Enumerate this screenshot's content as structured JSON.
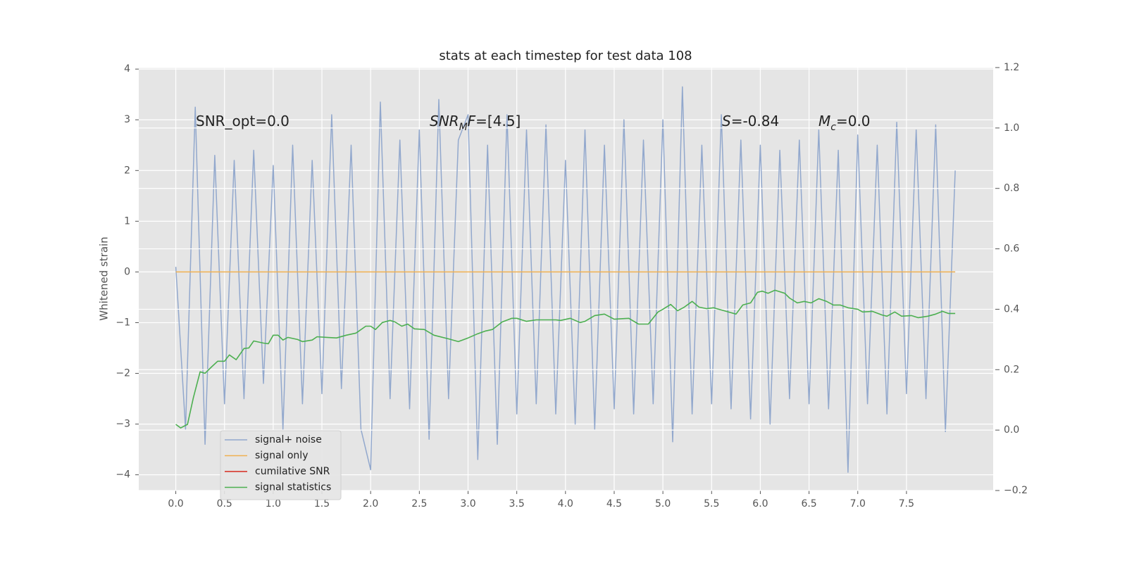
{
  "chart_data": {
    "type": "line",
    "title": "stats at each timestep for test data 108",
    "ylabel": "Whitened strain",
    "annotations": [
      [
        {
          "text": "SNR_opt=0.0",
          "style": "normal"
        }
      ],
      [
        {
          "text": "SNR",
          "style": "italic"
        },
        {
          "text": "M",
          "style": "sub"
        },
        {
          "text": "F",
          "style": "italic"
        },
        {
          "text": "=[4.5]",
          "style": "normal"
        }
      ],
      [
        {
          "text": "S",
          "style": "italic"
        },
        {
          "text": "=-0.84",
          "style": "normal"
        }
      ],
      [
        {
          "text": "M",
          "style": "italic"
        },
        {
          "text": "c",
          "style": "sub"
        },
        {
          "text": "=0.0",
          "style": "normal"
        }
      ]
    ],
    "series": [
      {
        "name": "signal+ noise",
        "color": "#92a8cd",
        "axis": "y",
        "x": [
          0,
          0.1,
          0.2,
          0.3,
          0.4,
          0.5,
          0.6,
          0.7,
          0.8,
          0.9,
          1.0,
          1.1,
          1.2,
          1.3,
          1.4,
          1.5,
          1.6,
          1.7,
          1.8,
          1.9,
          2.0,
          2.1,
          2.2,
          2.3,
          2.4,
          2.5,
          2.6,
          2.7,
          2.8,
          2.9,
          3.0,
          3.1,
          3.2,
          3.3,
          3.4,
          3.5,
          3.6,
          3.7,
          3.8,
          3.9,
          4.0,
          4.1,
          4.2,
          4.3,
          4.4,
          4.5,
          4.6,
          4.7,
          4.8,
          4.9,
          5.0,
          5.1,
          5.2,
          5.3,
          5.4,
          5.5,
          5.6,
          5.7,
          5.8,
          5.9,
          6.0,
          6.1,
          6.2,
          6.3,
          6.4,
          6.5,
          6.6,
          6.7,
          6.8,
          6.9,
          7.0,
          7.1,
          7.2,
          7.3,
          7.4,
          7.5,
          7.6,
          7.7,
          7.8,
          7.9,
          8.0
        ],
        "values": [
          0.1,
          -3.1,
          3.25,
          -3.4,
          2.3,
          -2.6,
          2.2,
          -2.5,
          2.4,
          -2.2,
          2.1,
          -3.1,
          2.5,
          -2.6,
          2.2,
          -2.4,
          3.1,
          -2.3,
          2.5,
          -3.1,
          -3.9,
          3.35,
          -2.5,
          2.6,
          -2.7,
          2.8,
          -3.3,
          3.4,
          -2.5,
          2.6,
          3.1,
          -3.7,
          2.5,
          -3.4,
          3.1,
          -2.8,
          2.8,
          -2.6,
          2.9,
          -2.8,
          2.2,
          -3.0,
          2.8,
          -3.1,
          2.5,
          -2.7,
          3.0,
          -2.8,
          2.6,
          -2.6,
          3.0,
          -3.35,
          3.65,
          -2.8,
          2.5,
          -2.6,
          3.1,
          -2.7,
          2.6,
          -2.9,
          2.5,
          -3.0,
          2.4,
          -2.5,
          2.6,
          -2.6,
          2.8,
          -2.7,
          2.4,
          -3.95,
          2.7,
          -2.6,
          2.5,
          -2.8,
          2.95,
          -2.4,
          2.8,
          -2.5,
          2.9,
          -3.15,
          2.0
        ]
      },
      {
        "name": "signal only",
        "color": "#f0b050",
        "axis": "y",
        "x": [
          0,
          8.0
        ],
        "values": [
          0,
          0
        ]
      },
      {
        "name": "cumilative SNR",
        "color": "#d62a1e",
        "axis": "y",
        "x": [],
        "values": []
      },
      {
        "name": "signal statistics",
        "color": "#4caf50",
        "axis": "y2",
        "x": [
          0,
          0.05,
          0.12,
          0.18,
          0.25,
          0.3,
          0.37,
          0.43,
          0.5,
          0.55,
          0.62,
          0.7,
          0.75,
          0.8,
          0.9,
          0.95,
          1.0,
          1.05,
          1.1,
          1.15,
          1.25,
          1.3,
          1.4,
          1.45,
          1.55,
          1.65,
          1.75,
          1.85,
          1.95,
          2.0,
          2.05,
          2.12,
          2.2,
          2.25,
          2.32,
          2.38,
          2.45,
          2.55,
          2.65,
          2.8,
          2.9,
          3.0,
          3.1,
          3.18,
          3.25,
          3.35,
          3.45,
          3.5,
          3.6,
          3.7,
          3.9,
          3.95,
          4.05,
          4.15,
          4.2,
          4.3,
          4.4,
          4.5,
          4.65,
          4.75,
          4.85,
          4.95,
          5.0,
          5.08,
          5.15,
          5.22,
          5.3,
          5.37,
          5.45,
          5.52,
          5.65,
          5.75,
          5.82,
          5.9,
          5.97,
          6.02,
          6.08,
          6.15,
          6.25,
          6.3,
          6.38,
          6.45,
          6.52,
          6.6,
          6.68,
          6.75,
          6.82,
          6.9,
          7.0,
          7.05,
          7.15,
          7.25,
          7.3,
          7.38,
          7.45,
          7.55,
          7.62,
          7.72,
          7.8,
          7.87,
          7.93,
          8.0
        ],
        "values": [
          0.019,
          0.007,
          0.019,
          0.107,
          0.193,
          0.188,
          0.21,
          0.228,
          0.228,
          0.249,
          0.233,
          0.27,
          0.272,
          0.295,
          0.288,
          0.286,
          0.314,
          0.314,
          0.298,
          0.307,
          0.3,
          0.293,
          0.298,
          0.309,
          0.307,
          0.305,
          0.314,
          0.321,
          0.344,
          0.344,
          0.333,
          0.356,
          0.363,
          0.358,
          0.344,
          0.351,
          0.335,
          0.333,
          0.314,
          0.302,
          0.293,
          0.305,
          0.319,
          0.328,
          0.333,
          0.358,
          0.37,
          0.37,
          0.36,
          0.365,
          0.365,
          0.363,
          0.37,
          0.356,
          0.36,
          0.379,
          0.384,
          0.367,
          0.37,
          0.351,
          0.351,
          0.391,
          0.4,
          0.416,
          0.395,
          0.407,
          0.426,
          0.407,
          0.402,
          0.405,
          0.393,
          0.384,
          0.414,
          0.421,
          0.456,
          0.46,
          0.453,
          0.463,
          0.453,
          0.437,
          0.421,
          0.426,
          0.421,
          0.435,
          0.426,
          0.414,
          0.414,
          0.405,
          0.4,
          0.391,
          0.393,
          0.381,
          0.377,
          0.391,
          0.377,
          0.379,
          0.372,
          0.377,
          0.384,
          0.393,
          0.386,
          0.386
        ]
      }
    ],
    "xlim": [
      -0.38,
      8.39
    ],
    "xticks": [
      {
        "value": 0,
        "label": "0.0"
      },
      {
        "value": 0.5,
        "label": "0.5"
      },
      {
        "value": 1,
        "label": "1.0"
      },
      {
        "value": 1.5,
        "label": "1.5"
      },
      {
        "value": 2,
        "label": "2.0"
      },
      {
        "value": 2.5,
        "label": "2.5"
      },
      {
        "value": 3,
        "label": "3.0"
      },
      {
        "value": 3.5,
        "label": "3.5"
      },
      {
        "value": 4,
        "label": "4.0"
      },
      {
        "value": 4.5,
        "label": "4.5"
      },
      {
        "value": 5,
        "label": "5.0"
      },
      {
        "value": 5.5,
        "label": "5.5"
      },
      {
        "value": 6,
        "label": "6.0"
      },
      {
        "value": 6.5,
        "label": "6.5"
      },
      {
        "value": 7,
        "label": "7.0"
      },
      {
        "value": 7.5,
        "label": "7.5"
      }
    ],
    "ylim": [
      -4.31,
      4.03
    ],
    "yticks": [
      {
        "value": -4,
        "label": "−4"
      },
      {
        "value": -3,
        "label": "−3"
      },
      {
        "value": -2,
        "label": "−2"
      },
      {
        "value": -1,
        "label": "−1"
      },
      0,
      1,
      2,
      3,
      4
    ],
    "y2lim": [
      -0.2,
      1.2
    ],
    "y2ticks": [
      {
        "value": -0.2,
        "label": "−0.2"
      },
      {
        "value": 0,
        "label": "0.0"
      },
      {
        "value": 0.2,
        "label": "0.2"
      },
      {
        "value": 0.4,
        "label": "0.4"
      },
      {
        "value": 0.6,
        "label": "0.6"
      },
      {
        "value": 0.8,
        "label": "0.8"
      },
      {
        "value": 1,
        "label": "1.0"
      },
      {
        "value": 1.2,
        "label": "1.2"
      }
    ],
    "grid": true,
    "legend": "lower left"
  }
}
